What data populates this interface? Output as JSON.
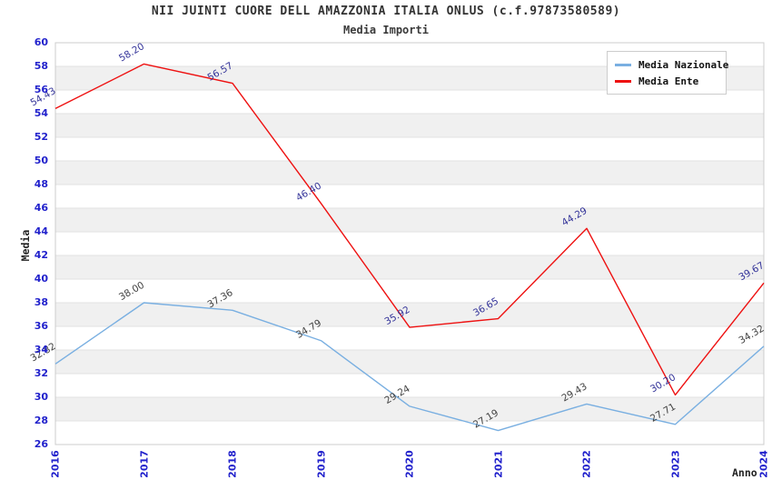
{
  "title": "NII JUINTI CUORE DELL AMAZZONIA ITALIA ONLUS (c.f.97873580589)",
  "subtitle": "Media Importi",
  "chart_data": {
    "type": "line",
    "categories": [
      "2016",
      "2017",
      "2018",
      "2019",
      "2020",
      "2021",
      "2022",
      "2023",
      "2024"
    ],
    "series": [
      {
        "name": "Media Nazionale",
        "color": "#79afe1",
        "label_color": "#404040",
        "values": [
          32.82,
          38.0,
          37.36,
          34.79,
          29.24,
          27.19,
          29.43,
          27.71,
          34.32
        ]
      },
      {
        "name": "Media Ente",
        "color": "#ee1111",
        "label_color": "#333399",
        "values": [
          54.43,
          58.2,
          56.57,
          46.4,
          35.92,
          36.65,
          44.29,
          30.2,
          39.67
        ]
      }
    ],
    "xlabel": "Anno",
    "ylabel": "Media",
    "ylim": [
      26,
      60
    ],
    "ytick_step": 2,
    "legend_position": "top-right",
    "grid": "horizontal-bands",
    "label_decimals": 2
  },
  "colors": {
    "tick_label": "#2222cc",
    "band_gray": "#f0f0f0",
    "grid_line": "#e2e2e2",
    "plot_border": "#cccccc",
    "background": "#ffffff"
  }
}
